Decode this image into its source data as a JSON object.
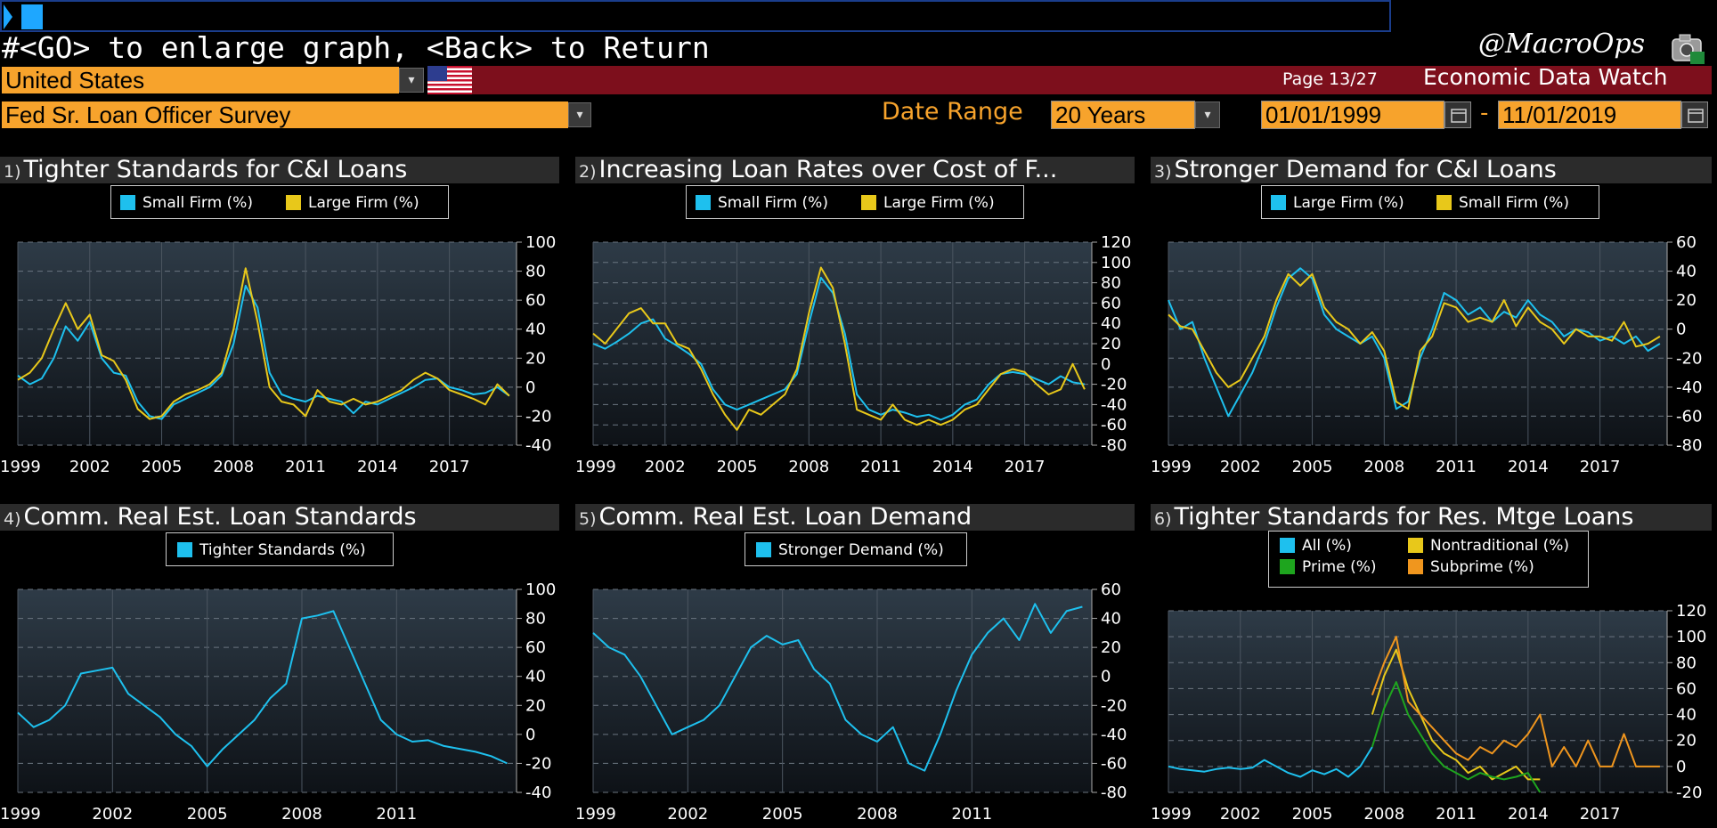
{
  "header": {
    "command_text": "#<GO> to enlarge graph, <Back> to Return",
    "handle": "@MacroOps",
    "country": "United States",
    "page_info": "Page 13/27",
    "app_title": "Economic Data Watch",
    "survey": "Fed Sr. Loan Officer Survey",
    "date_range_label": "Date Range",
    "date_range_value": "20 Years",
    "start_date": "01/01/1999",
    "end_date": "11/01/2019",
    "date_separator": "-"
  },
  "colors": {
    "blue": "#1ec0ee",
    "yellow": "#e8c81a",
    "green": "#1ea51e",
    "orange": "#f0961e",
    "accent_orange": "#f7a32c",
    "red_bar": "#7d0f1c"
  },
  "icons": {
    "flag": "us-flag-icon",
    "dropdown": "chevron-down-icon",
    "calendar": "calendar-icon"
  },
  "chart_data": [
    {
      "id": "1)",
      "title": "Tighter Standards for C&I Loans",
      "type": "line",
      "ylim": [
        -40,
        100
      ],
      "yticks": [
        "100",
        "80",
        "60",
        "40",
        "20",
        "0",
        "-20",
        "-40"
      ],
      "xticks": [
        "1999",
        "2002",
        "2005",
        "2008",
        "2011",
        "2014",
        "2017"
      ],
      "x_range": [
        1999,
        2019.8
      ],
      "series": [
        {
          "name": "Small Firm (%)",
          "color": "#1ec0ee",
          "x": [
            1999.0,
            1999.5,
            2000.0,
            2000.5,
            2001.0,
            2001.5,
            2002.0,
            2002.5,
            2003.0,
            2003.5,
            2004.0,
            2004.5,
            2005.0,
            2005.5,
            2006.0,
            2006.5,
            2007.0,
            2007.5,
            2008.0,
            2008.5,
            2009.0,
            2009.5,
            2010.0,
            2010.5,
            2011.0,
            2011.5,
            2012.0,
            2012.5,
            2013.0,
            2013.5,
            2014.0,
            2014.5,
            2015.0,
            2015.5,
            2016.0,
            2016.5,
            2017.0,
            2017.5,
            2018.0,
            2018.5,
            2019.0,
            2019.5
          ],
          "y": [
            8,
            2,
            6,
            20,
            42,
            32,
            45,
            20,
            10,
            8,
            -10,
            -20,
            -22,
            -12,
            -8,
            -4,
            0,
            8,
            30,
            70,
            55,
            10,
            -5,
            -8,
            -10,
            -6,
            -8,
            -10,
            -18,
            -10,
            -12,
            -8,
            -4,
            0,
            5,
            6,
            0,
            -2,
            -5,
            -4,
            0,
            -6
          ]
        },
        {
          "name": "Large Firm (%)",
          "color": "#e8c81a",
          "x": [
            1999.0,
            1999.5,
            2000.0,
            2000.5,
            2001.0,
            2001.5,
            2002.0,
            2002.5,
            2003.0,
            2003.5,
            2004.0,
            2004.5,
            2005.0,
            2005.5,
            2006.0,
            2006.5,
            2007.0,
            2007.5,
            2008.0,
            2008.5,
            2009.0,
            2009.5,
            2010.0,
            2010.5,
            2011.0,
            2011.5,
            2012.0,
            2012.5,
            2013.0,
            2013.5,
            2014.0,
            2014.5,
            2015.0,
            2015.5,
            2016.0,
            2016.5,
            2017.0,
            2017.5,
            2018.0,
            2018.5,
            2019.0,
            2019.5
          ],
          "y": [
            5,
            10,
            20,
            40,
            58,
            40,
            50,
            22,
            18,
            5,
            -15,
            -22,
            -20,
            -10,
            -5,
            -2,
            2,
            10,
            40,
            82,
            45,
            0,
            -10,
            -12,
            -20,
            -2,
            -10,
            -12,
            -8,
            -12,
            -10,
            -6,
            -2,
            5,
            10,
            6,
            -2,
            -5,
            -8,
            -12,
            2,
            -6
          ]
        }
      ]
    },
    {
      "id": "2)",
      "title": "Increasing Loan Rates over Cost of F...",
      "type": "line",
      "ylim": [
        -80,
        120
      ],
      "yticks": [
        "120",
        "100",
        "80",
        "60",
        "40",
        "20",
        "0",
        "-20",
        "-40",
        "-60",
        "-80"
      ],
      "xticks": [
        "1999",
        "2002",
        "2005",
        "2008",
        "2011",
        "2014",
        "2017"
      ],
      "x_range": [
        1999,
        2019.8
      ],
      "series": [
        {
          "name": "Small Firm (%)",
          "color": "#1ec0ee",
          "x": [
            1999.0,
            1999.5,
            2000.0,
            2000.5,
            2001.0,
            2001.5,
            2002.0,
            2002.5,
            2003.0,
            2003.5,
            2004.0,
            2004.5,
            2005.0,
            2005.5,
            2006.0,
            2006.5,
            2007.0,
            2007.5,
            2008.0,
            2008.5,
            2009.0,
            2009.5,
            2010.0,
            2010.5,
            2011.0,
            2011.5,
            2012.0,
            2012.5,
            2013.0,
            2013.5,
            2014.0,
            2014.5,
            2015.0,
            2015.5,
            2016.0,
            2016.5,
            2017.0,
            2017.5,
            2018.0,
            2018.5,
            2019.0,
            2019.5
          ],
          "y": [
            20,
            15,
            22,
            30,
            40,
            44,
            25,
            18,
            10,
            0,
            -25,
            -40,
            -45,
            -40,
            -35,
            -30,
            -25,
            -10,
            40,
            85,
            70,
            30,
            -30,
            -45,
            -50,
            -45,
            -48,
            -52,
            -50,
            -55,
            -50,
            -40,
            -35,
            -20,
            -10,
            -8,
            -10,
            -15,
            -20,
            -12,
            -18,
            -20
          ]
        },
        {
          "name": "Large Firm (%)",
          "color": "#e8c81a",
          "x": [
            1999.0,
            1999.5,
            2000.0,
            2000.5,
            2001.0,
            2001.5,
            2002.0,
            2002.5,
            2003.0,
            2003.5,
            2004.0,
            2004.5,
            2005.0,
            2005.5,
            2006.0,
            2006.5,
            2007.0,
            2007.5,
            2008.0,
            2008.5,
            2009.0,
            2009.5,
            2010.0,
            2010.5,
            2011.0,
            2011.5,
            2012.0,
            2012.5,
            2013.0,
            2013.5,
            2014.0,
            2014.5,
            2015.0,
            2015.5,
            2016.0,
            2016.5,
            2017.0,
            2017.5,
            2018.0,
            2018.5,
            2019.0,
            2019.5
          ],
          "y": [
            30,
            20,
            35,
            50,
            55,
            40,
            40,
            20,
            15,
            -5,
            -30,
            -50,
            -65,
            -45,
            -50,
            -40,
            -30,
            -5,
            50,
            95,
            75,
            20,
            -45,
            -50,
            -55,
            -40,
            -55,
            -60,
            -55,
            -60,
            -55,
            -45,
            -40,
            -25,
            -10,
            -5,
            -8,
            -20,
            -30,
            -25,
            0,
            -25
          ]
        }
      ]
    },
    {
      "id": "3)",
      "title": "Stronger Demand for C&I Loans",
      "type": "line",
      "ylim": [
        -80,
        60
      ],
      "yticks": [
        "60",
        "40",
        "20",
        "0",
        "-20",
        "-40",
        "-60",
        "-80"
      ],
      "xticks": [
        "1999",
        "2002",
        "2005",
        "2008",
        "2011",
        "2014",
        "2017"
      ],
      "x_range": [
        1999,
        2019.8
      ],
      "series": [
        {
          "name": "Large Firm (%)",
          "color": "#1ec0ee",
          "x": [
            1999.0,
            1999.5,
            2000.0,
            2000.5,
            2001.0,
            2001.5,
            2002.0,
            2002.5,
            2003.0,
            2003.5,
            2004.0,
            2004.5,
            2005.0,
            2005.5,
            2006.0,
            2006.5,
            2007.0,
            2007.5,
            2008.0,
            2008.5,
            2009.0,
            2009.5,
            2010.0,
            2010.5,
            2011.0,
            2011.5,
            2012.0,
            2012.5,
            2013.0,
            2013.5,
            2014.0,
            2014.5,
            2015.0,
            2015.5,
            2016.0,
            2016.5,
            2017.0,
            2017.5,
            2018.0,
            2018.5,
            2019.0,
            2019.5
          ],
          "y": [
            20,
            0,
            5,
            -20,
            -40,
            -60,
            -45,
            -30,
            -10,
            15,
            35,
            42,
            35,
            10,
            0,
            -5,
            -10,
            -5,
            -20,
            -55,
            -50,
            -20,
            0,
            25,
            20,
            10,
            15,
            5,
            12,
            8,
            20,
            10,
            5,
            -5,
            0,
            -2,
            -8,
            -5,
            -10,
            -5,
            -15,
            -10
          ]
        },
        {
          "name": "Small Firm (%)",
          "color": "#e8c81a",
          "x": [
            1999.0,
            1999.5,
            2000.0,
            2000.5,
            2001.0,
            2001.5,
            2002.0,
            2002.5,
            2003.0,
            2003.5,
            2004.0,
            2004.5,
            2005.0,
            2005.5,
            2006.0,
            2006.5,
            2007.0,
            2007.5,
            2008.0,
            2008.5,
            2009.0,
            2009.5,
            2010.0,
            2010.5,
            2011.0,
            2011.5,
            2012.0,
            2012.5,
            2013.0,
            2013.5,
            2014.0,
            2014.5,
            2015.0,
            2015.5,
            2016.0,
            2016.5,
            2017.0,
            2017.5,
            2018.0,
            2018.5,
            2019.0,
            2019.5
          ],
          "y": [
            10,
            2,
            0,
            -15,
            -30,
            -40,
            -35,
            -20,
            -5,
            20,
            38,
            30,
            38,
            15,
            5,
            0,
            -10,
            -2,
            -15,
            -50,
            -55,
            -15,
            -5,
            18,
            15,
            5,
            8,
            5,
            20,
            2,
            15,
            5,
            0,
            -10,
            0,
            -5,
            -5,
            -8,
            5,
            -12,
            -10,
            -5
          ]
        }
      ]
    },
    {
      "id": "4)",
      "title": "Comm. Real Est. Loan Standards",
      "type": "line",
      "ylim": [
        -40,
        100
      ],
      "yticks": [
        "100",
        "80",
        "60",
        "40",
        "20",
        "0",
        "-20",
        "-40"
      ],
      "xticks": [
        "1999",
        "2002",
        "2005",
        "2008",
        "2011"
      ],
      "x_range": [
        1999,
        2014.8
      ],
      "series": [
        {
          "name": "Tighter Standards (%)",
          "color": "#1ec0ee",
          "x": [
            1999.0,
            1999.5,
            2000.0,
            2000.5,
            2001.0,
            2001.5,
            2002.0,
            2002.5,
            2003.0,
            2003.5,
            2004.0,
            2004.5,
            2005.0,
            2005.5,
            2006.0,
            2006.5,
            2007.0,
            2007.5,
            2008.0,
            2008.5,
            2009.0,
            2009.5,
            2010.0,
            2010.5,
            2011.0,
            2011.5,
            2012.0,
            2012.5,
            2013.0,
            2013.5,
            2014.0,
            2014.5
          ],
          "y": [
            15,
            5,
            10,
            20,
            42,
            44,
            46,
            28,
            20,
            12,
            0,
            -8,
            -22,
            -10,
            0,
            10,
            25,
            35,
            80,
            82,
            85,
            60,
            35,
            10,
            0,
            -5,
            -4,
            -8,
            -10,
            -12,
            -15,
            -20
          ]
        }
      ]
    },
    {
      "id": "5)",
      "title": "Comm. Real Est. Loan Demand",
      "type": "line",
      "ylim": [
        -80,
        60
      ],
      "yticks": [
        "60",
        "40",
        "20",
        "0",
        "-20",
        "-40",
        "-60",
        "-80"
      ],
      "xticks": [
        "1999",
        "2002",
        "2005",
        "2008",
        "2011"
      ],
      "x_range": [
        1999,
        2014.8
      ],
      "series": [
        {
          "name": "Stronger Demand (%)",
          "color": "#1ec0ee",
          "x": [
            1999.0,
            1999.5,
            2000.0,
            2000.5,
            2001.0,
            2001.5,
            2002.0,
            2002.5,
            2003.0,
            2003.5,
            2004.0,
            2004.5,
            2005.0,
            2005.5,
            2006.0,
            2006.5,
            2007.0,
            2007.5,
            2008.0,
            2008.5,
            2009.0,
            2009.5,
            2010.0,
            2010.5,
            2011.0,
            2011.5,
            2012.0,
            2012.5,
            2013.0,
            2013.5,
            2014.0,
            2014.5
          ],
          "y": [
            30,
            20,
            15,
            0,
            -20,
            -40,
            -35,
            -30,
            -20,
            0,
            20,
            28,
            22,
            25,
            5,
            -5,
            -30,
            -40,
            -45,
            -35,
            -60,
            -65,
            -40,
            -10,
            15,
            30,
            40,
            25,
            50,
            30,
            45,
            48
          ]
        }
      ]
    },
    {
      "id": "6)",
      "title": "Tighter Standards for Res. Mtge Loans",
      "type": "line",
      "ylim": [
        -20,
        120
      ],
      "yticks": [
        "120",
        "100",
        "80",
        "60",
        "40",
        "20",
        "0",
        "-20"
      ],
      "xticks": [
        "1999",
        "2002",
        "2005",
        "2008",
        "2011",
        "2014",
        "2017"
      ],
      "x_range": [
        1999,
        2019.8
      ],
      "series": [
        {
          "name": "All (%)",
          "color": "#1ec0ee",
          "x": [
            1999.0,
            1999.5,
            2000.0,
            2000.5,
            2001.0,
            2001.5,
            2002.0,
            2002.5,
            2003.0,
            2003.5,
            2004.0,
            2004.5,
            2005.0,
            2005.5,
            2006.0,
            2006.5,
            2007.0,
            2007.5
          ],
          "y": [
            0,
            -2,
            -3,
            -4,
            -2,
            -1,
            -2,
            -1,
            5,
            0,
            -5,
            -8,
            -3,
            -6,
            -2,
            -8,
            0,
            15
          ]
        },
        {
          "name": "Nontraditional (%)",
          "color": "#e8c81a",
          "x": [
            2007.5,
            2008.0,
            2008.5,
            2009.0,
            2009.5,
            2010.0,
            2010.5,
            2011.0,
            2011.5,
            2012.0,
            2012.5,
            2013.0,
            2013.5,
            2014.0,
            2014.5
          ],
          "y": [
            40,
            70,
            90,
            60,
            40,
            20,
            10,
            5,
            -5,
            0,
            -10,
            -5,
            0,
            -10,
            -10
          ]
        },
        {
          "name": "Prime (%)",
          "color": "#1ea51e",
          "x": [
            2007.5,
            2008.0,
            2008.5,
            2009.0,
            2009.5,
            2010.0,
            2010.5,
            2011.0,
            2011.5,
            2012.0,
            2012.5,
            2013.0,
            2013.5,
            2014.0,
            2014.5
          ],
          "y": [
            15,
            45,
            65,
            40,
            25,
            10,
            0,
            -5,
            -10,
            -5,
            -8,
            -10,
            -8,
            -5,
            -20
          ]
        },
        {
          "name": "Subprime (%)",
          "color": "#f0961e",
          "x": [
            2007.5,
            2008.0,
            2008.5,
            2009.0,
            2009.5,
            2010.0,
            2010.5,
            2011.0,
            2011.5,
            2012.0,
            2012.5,
            2013.0,
            2013.5,
            2014.0,
            2014.5,
            2015.0,
            2015.5,
            2016.0,
            2016.5,
            2017.0,
            2017.5,
            2018.0,
            2018.5,
            2019.0,
            2019.5
          ],
          "y": [
            55,
            80,
            100,
            50,
            40,
            30,
            20,
            10,
            5,
            15,
            10,
            20,
            15,
            25,
            40,
            0,
            15,
            0,
            20,
            0,
            0,
            25,
            0,
            0,
            0
          ]
        }
      ]
    }
  ]
}
